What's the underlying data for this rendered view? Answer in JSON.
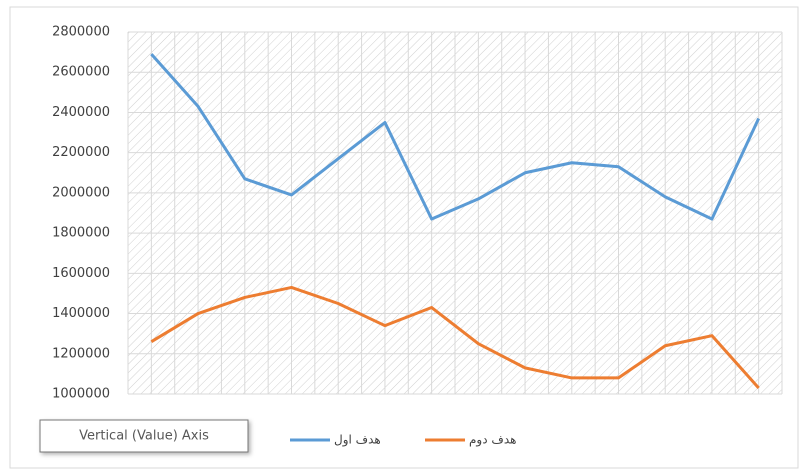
{
  "chart_data": {
    "type": "line",
    "categories": [
      null,
      null,
      null,
      null,
      null,
      null,
      null,
      null,
      null,
      null,
      null,
      null,
      null,
      null
    ],
    "series": [
      {
        "name": "هدف اول",
        "color": "#5b9bd5",
        "values": [
          2690000,
          2430000,
          2070000,
          1990000,
          2170000,
          2350000,
          1870000,
          1970000,
          2100000,
          2150000,
          2130000,
          1980000,
          1870000,
          2370000
        ]
      },
      {
        "name": "هدف دوم",
        "color": "#ed7d31",
        "values": [
          1260000,
          1400000,
          1480000,
          1530000,
          1450000,
          1340000,
          1430000,
          1250000,
          1130000,
          1080000,
          1080000,
          1240000,
          1290000,
          1030000
        ]
      }
    ],
    "ylim": [
      1000000,
      2800000
    ],
    "yticks": [
      1000000,
      1200000,
      1400000,
      1600000,
      1800000,
      2000000,
      2200000,
      2400000,
      2600000,
      2800000
    ],
    "grid": true,
    "legend": "bottom",
    "tooltip": "Vertical (Value) Axis"
  }
}
